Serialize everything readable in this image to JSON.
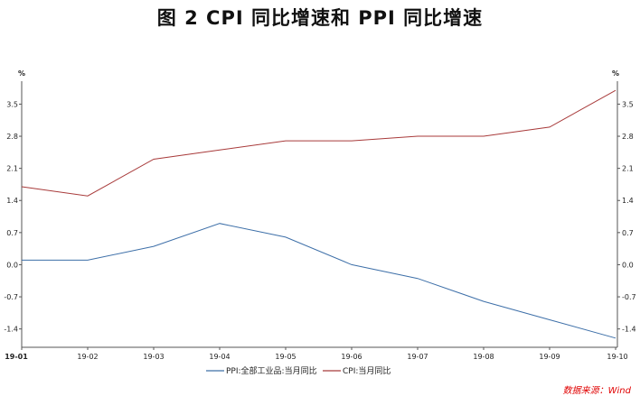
{
  "title": "图 2   CPI 同比增速和 PPI 同比增速",
  "source": "数据来源：Wind",
  "chart_data": {
    "type": "line",
    "title": "图 2   CPI 同比增速和 PPI 同比增速",
    "x": [
      "19-01",
      "19-02",
      "19-03",
      "19-04",
      "19-05",
      "19-06",
      "19-07",
      "19-08",
      "19-09",
      "19-10"
    ],
    "y_unit_left": "%",
    "y_unit_right": "%",
    "yticks": [
      -1.4,
      -0.7,
      0.0,
      0.7,
      1.4,
      2.1,
      2.8,
      3.5
    ],
    "ytick_labels": [
      "-1.4",
      "-0.7",
      "0.0",
      "0.7",
      "1.4",
      "2.1",
      "2.8",
      "3.5"
    ],
    "ylim": [
      -1.8,
      4.0
    ],
    "grid": false,
    "legend_position": "bottom",
    "series": [
      {
        "name": "PPI:全部工业品:当月同比",
        "color": "#3d6fa8",
        "values": [
          0.1,
          0.1,
          0.4,
          0.9,
          0.6,
          0.0,
          -0.3,
          -0.8,
          -1.2,
          -1.6
        ]
      },
      {
        "name": "CPI:当月同比",
        "color": "#a83a3a",
        "values": [
          1.7,
          1.5,
          2.3,
          2.5,
          2.7,
          2.7,
          2.8,
          2.8,
          3.0,
          3.8
        ]
      }
    ]
  }
}
